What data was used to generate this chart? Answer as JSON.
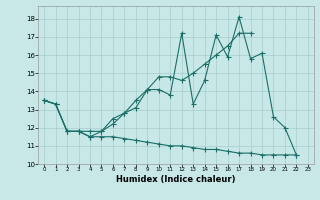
{
  "xlabel": "Humidex (Indice chaleur)",
  "background_color": "#c8e8e8",
  "grid_color": "#a8cccc",
  "line_color": "#1a6e68",
  "xlim_min": -0.5,
  "xlim_max": 23.5,
  "ylim_min": 10,
  "ylim_max": 18.7,
  "xticks": [
    0,
    1,
    2,
    3,
    4,
    5,
    6,
    7,
    8,
    9,
    10,
    11,
    12,
    13,
    14,
    15,
    16,
    17,
    18,
    19,
    20,
    21,
    22,
    23
  ],
  "yticks": [
    10,
    11,
    12,
    13,
    14,
    15,
    16,
    17,
    18
  ],
  "line1_x": [
    0,
    1,
    2,
    3,
    4,
    5,
    6,
    7,
    8,
    9,
    10,
    11,
    12,
    13,
    14,
    15,
    16,
    17,
    18,
    19,
    20,
    21,
    22
  ],
  "line1_y": [
    13.5,
    13.3,
    11.8,
    11.8,
    11.5,
    11.8,
    12.2,
    12.8,
    13.1,
    14.1,
    14.1,
    13.8,
    17.2,
    13.3,
    14.6,
    17.1,
    15.9,
    18.1,
    15.8,
    16.1,
    12.6,
    12.0,
    10.5
  ],
  "line2_x": [
    0,
    1,
    2,
    3,
    4,
    5,
    6,
    7,
    8,
    9,
    10,
    11,
    12,
    13,
    14,
    15,
    16,
    17,
    18
  ],
  "line2_y": [
    13.5,
    13.3,
    11.8,
    11.8,
    11.8,
    11.8,
    12.5,
    12.8,
    13.5,
    14.1,
    14.8,
    14.8,
    14.6,
    15.0,
    15.5,
    16.0,
    16.5,
    17.2,
    17.2
  ],
  "line3_x": [
    0,
    1,
    2,
    3,
    4,
    5,
    6,
    7,
    8,
    9,
    10,
    11,
    12,
    13,
    14,
    15,
    16,
    17,
    18,
    19,
    20,
    21,
    22
  ],
  "line3_y": [
    13.5,
    13.3,
    11.8,
    11.8,
    11.5,
    11.5,
    11.5,
    11.4,
    11.3,
    11.2,
    11.1,
    11.0,
    11.0,
    10.9,
    10.8,
    10.8,
    10.7,
    10.6,
    10.6,
    10.5,
    10.5,
    10.5,
    10.5
  ]
}
